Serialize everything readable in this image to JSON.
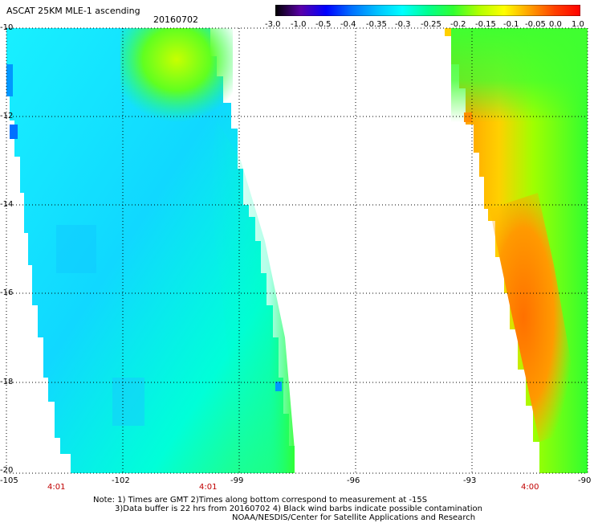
{
  "header": {
    "title": "ASCAT 25KM MLE-1 ascending",
    "date": "20160702"
  },
  "colorbar": {
    "labels": [
      "-3.0",
      "-1.0",
      "-0.5",
      "-0.4",
      "-0.35",
      "-0.3",
      "-0.25",
      "-0.2",
      "-0.15",
      "-0.1",
      "-0.05",
      "0.0",
      "1.0"
    ],
    "colors": [
      "#000000",
      "#5a00a8",
      "#0000ff",
      "#0070ff",
      "#00c0ff",
      "#00ffff",
      "#00ff90",
      "#30ff30",
      "#b0ff00",
      "#ffff00",
      "#ffa000",
      "#ff4000",
      "#ff0000"
    ]
  },
  "axes": {
    "lat_labels": [
      "-10",
      "-12",
      "-14",
      "-16",
      "-18",
      "-20"
    ],
    "lon_labels": [
      "-105",
      "-102",
      "-99",
      "-96",
      "-93",
      "-90"
    ],
    "lat_range": [
      -20,
      -10
    ],
    "lon_range": [
      -105,
      -90
    ],
    "grid": true
  },
  "times": [
    "4:01",
    "4:01",
    "4:00"
  ],
  "notes": {
    "line1": "Note: 1) Times are GMT 2)Times along bottom correspond to measurement at -15S",
    "line2": "3)Data buffer is 22 hrs from 20160702 4) Black wind barbs indicate possible contamination",
    "line3": "NOAA/NESDIS/Center for Satellite Applications and Research"
  },
  "style": {
    "time_color": "#c00000"
  }
}
